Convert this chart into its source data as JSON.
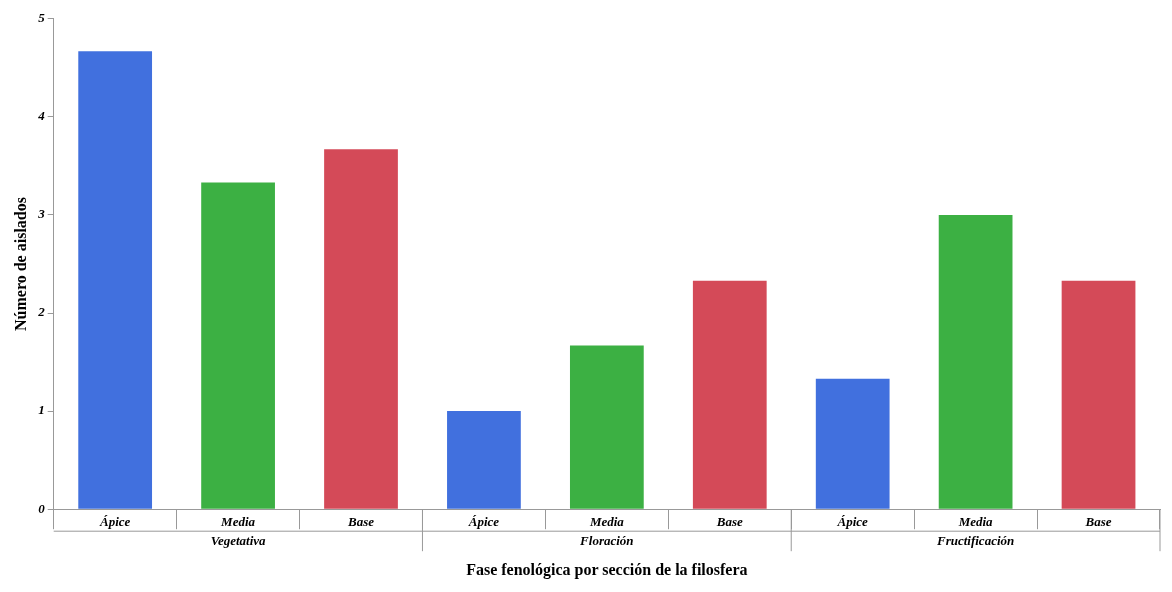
{
  "chart_data": {
    "type": "bar",
    "xlabel": "Fase fenológica por sección de la filosfera",
    "ylabel": "Número de aislados",
    "categories": [
      "Ápice",
      "Media",
      "Base",
      "Ápice",
      "Media",
      "Base",
      "Ápice",
      "Media",
      "Base"
    ],
    "values": [
      4.67,
      3.33,
      3.67,
      1,
      1.67,
      2.33,
      1.33,
      3,
      2.33
    ],
    "colors": [
      "#4170de",
      "#3cb043",
      "#d44a58",
      "#4170de",
      "#3cb043",
      "#d44a58",
      "#4170de",
      "#3cb043",
      "#d44a58"
    ],
    "ylim": [
      0,
      5
    ],
    "yticks": [
      0,
      1,
      2,
      3,
      4,
      5
    ],
    "annotations": [
      "Vegetativa",
      "Floración",
      "Fructificación"
    ],
    "grid": false,
    "legend": false
  }
}
